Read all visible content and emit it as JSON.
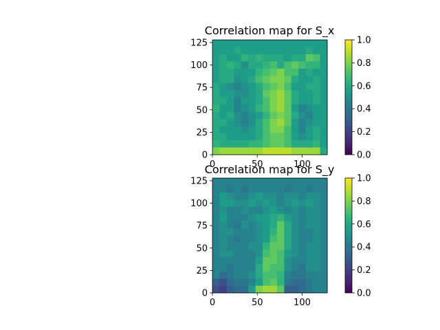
{
  "figure": {
    "background": "#ffffff"
  },
  "colormap": {
    "name": "viridis",
    "stops": [
      "#440154",
      "#482878",
      "#3e4989",
      "#31688e",
      "#26828e",
      "#1f9e89",
      "#35b779",
      "#6ece58",
      "#b5de2b",
      "#fde725"
    ]
  },
  "chart_data": [
    {
      "type": "heatmap",
      "title": "Correlation map for S_x",
      "xlabel": "",
      "ylabel": "",
      "xlim": [
        0,
        128
      ],
      "ylim": [
        0,
        128
      ],
      "xticks": [
        0,
        50,
        100
      ],
      "yticks": [
        0,
        25,
        50,
        75,
        100,
        125
      ],
      "grid": false,
      "colorbar": {
        "range": [
          0.0,
          1.0
        ],
        "ticks": [
          "0.0",
          "0.2",
          "0.4",
          "0.6",
          "0.8",
          "1.0"
        ]
      },
      "values": [
        [
          0.55,
          0.55,
          0.55,
          0.55,
          0.55,
          0.55,
          0.55,
          0.55,
          0.55,
          0.55,
          0.55,
          0.55,
          0.55,
          0.55,
          0.55,
          0.55
        ],
        [
          0.55,
          0.55,
          0.55,
          0.6,
          0.55,
          0.55,
          0.55,
          0.55,
          0.55,
          0.55,
          0.55,
          0.55,
          0.55,
          0.6,
          0.55,
          0.55
        ],
        [
          0.55,
          0.6,
          0.55,
          0.55,
          0.65,
          0.6,
          0.65,
          0.6,
          0.6,
          0.6,
          0.55,
          0.6,
          0.6,
          0.75,
          0.7,
          0.55
        ],
        [
          0.55,
          0.6,
          0.65,
          0.6,
          0.5,
          0.6,
          0.6,
          0.65,
          0.7,
          0.6,
          0.7,
          0.75,
          0.7,
          0.65,
          0.65,
          0.55
        ],
        [
          0.55,
          0.6,
          0.6,
          0.55,
          0.55,
          0.55,
          0.65,
          0.7,
          0.75,
          0.8,
          0.7,
          0.7,
          0.55,
          0.6,
          0.55,
          0.55
        ],
        [
          0.55,
          0.6,
          0.6,
          0.5,
          0.55,
          0.6,
          0.7,
          0.75,
          0.8,
          0.8,
          0.75,
          0.6,
          0.55,
          0.55,
          0.6,
          0.55
        ],
        [
          0.6,
          0.55,
          0.5,
          0.45,
          0.5,
          0.55,
          0.6,
          0.7,
          0.75,
          0.8,
          0.7,
          0.55,
          0.55,
          0.6,
          0.6,
          0.55
        ],
        [
          0.6,
          0.55,
          0.55,
          0.5,
          0.5,
          0.55,
          0.6,
          0.75,
          0.8,
          0.85,
          0.75,
          0.6,
          0.55,
          0.55,
          0.6,
          0.55
        ],
        [
          0.6,
          0.6,
          0.55,
          0.45,
          0.55,
          0.55,
          0.6,
          0.7,
          0.8,
          0.85,
          0.75,
          0.6,
          0.55,
          0.55,
          0.6,
          0.55
        ],
        [
          0.65,
          0.55,
          0.55,
          0.45,
          0.5,
          0.55,
          0.65,
          0.7,
          0.8,
          0.85,
          0.75,
          0.55,
          0.45,
          0.5,
          0.55,
          0.55
        ],
        [
          0.6,
          0.55,
          0.6,
          0.5,
          0.45,
          0.5,
          0.55,
          0.65,
          0.75,
          0.8,
          0.75,
          0.6,
          0.5,
          0.45,
          0.55,
          0.55
        ],
        [
          0.6,
          0.6,
          0.55,
          0.5,
          0.45,
          0.5,
          0.6,
          0.7,
          0.8,
          0.85,
          0.75,
          0.55,
          0.45,
          0.5,
          0.55,
          0.55
        ],
        [
          0.6,
          0.55,
          0.55,
          0.55,
          0.5,
          0.55,
          0.6,
          0.7,
          0.8,
          0.8,
          0.7,
          0.55,
          0.45,
          0.55,
          0.6,
          0.55
        ],
        [
          0.6,
          0.6,
          0.55,
          0.55,
          0.55,
          0.55,
          0.6,
          0.7,
          0.75,
          0.75,
          0.7,
          0.55,
          0.5,
          0.55,
          0.6,
          0.55
        ],
        [
          0.65,
          0.6,
          0.6,
          0.6,
          0.6,
          0.65,
          0.65,
          0.7,
          0.75,
          0.75,
          0.7,
          0.6,
          0.6,
          0.6,
          0.65,
          0.55
        ],
        [
          0.8,
          0.85,
          0.85,
          0.85,
          0.85,
          0.85,
          0.85,
          0.9,
          0.9,
          0.9,
          0.9,
          0.85,
          0.85,
          0.85,
          0.85,
          0.6
        ]
      ]
    },
    {
      "type": "heatmap",
      "title": "Correlation map for S_y",
      "xlabel": "",
      "ylabel": "",
      "xlim": [
        0,
        128
      ],
      "ylim": [
        0,
        128
      ],
      "xticks": [
        0,
        50,
        100
      ],
      "yticks": [
        0,
        25,
        50,
        75,
        100,
        125
      ],
      "grid": false,
      "colorbar": {
        "range": [
          0.0,
          1.0
        ],
        "ticks": [
          "0.0",
          "0.2",
          "0.4",
          "0.6",
          "0.8",
          "1.0"
        ]
      },
      "values": [
        [
          0.45,
          0.45,
          0.45,
          0.45,
          0.45,
          0.45,
          0.45,
          0.45,
          0.45,
          0.45,
          0.45,
          0.45,
          0.45,
          0.45,
          0.45,
          0.45
        ],
        [
          0.45,
          0.45,
          0.4,
          0.45,
          0.4,
          0.45,
          0.45,
          0.45,
          0.45,
          0.45,
          0.4,
          0.45,
          0.45,
          0.4,
          0.45,
          0.45
        ],
        [
          0.45,
          0.55,
          0.5,
          0.45,
          0.45,
          0.5,
          0.55,
          0.5,
          0.5,
          0.45,
          0.5,
          0.5,
          0.45,
          0.5,
          0.5,
          0.45
        ],
        [
          0.45,
          0.55,
          0.55,
          0.5,
          0.5,
          0.55,
          0.5,
          0.55,
          0.5,
          0.45,
          0.5,
          0.55,
          0.5,
          0.55,
          0.5,
          0.45
        ],
        [
          0.45,
          0.5,
          0.45,
          0.45,
          0.5,
          0.45,
          0.45,
          0.5,
          0.55,
          0.5,
          0.45,
          0.5,
          0.45,
          0.5,
          0.5,
          0.45
        ],
        [
          0.45,
          0.55,
          0.45,
          0.45,
          0.45,
          0.5,
          0.55,
          0.55,
          0.6,
          0.65,
          0.55,
          0.5,
          0.45,
          0.5,
          0.5,
          0.45
        ],
        [
          0.45,
          0.5,
          0.45,
          0.4,
          0.5,
          0.45,
          0.5,
          0.55,
          0.6,
          0.75,
          0.6,
          0.5,
          0.45,
          0.5,
          0.5,
          0.45
        ],
        [
          0.45,
          0.5,
          0.5,
          0.45,
          0.45,
          0.45,
          0.5,
          0.55,
          0.65,
          0.75,
          0.6,
          0.5,
          0.45,
          0.45,
          0.5,
          0.45
        ],
        [
          0.45,
          0.5,
          0.45,
          0.4,
          0.45,
          0.45,
          0.5,
          0.55,
          0.7,
          0.75,
          0.6,
          0.5,
          0.45,
          0.45,
          0.5,
          0.45
        ],
        [
          0.45,
          0.5,
          0.45,
          0.45,
          0.45,
          0.5,
          0.5,
          0.65,
          0.75,
          0.75,
          0.6,
          0.5,
          0.45,
          0.5,
          0.5,
          0.45
        ],
        [
          0.45,
          0.5,
          0.5,
          0.45,
          0.45,
          0.45,
          0.5,
          0.7,
          0.75,
          0.7,
          0.55,
          0.5,
          0.45,
          0.5,
          0.5,
          0.45
        ],
        [
          0.45,
          0.45,
          0.45,
          0.45,
          0.45,
          0.45,
          0.55,
          0.75,
          0.75,
          0.7,
          0.5,
          0.45,
          0.45,
          0.5,
          0.5,
          0.45
        ],
        [
          0.45,
          0.45,
          0.4,
          0.45,
          0.45,
          0.45,
          0.6,
          0.75,
          0.7,
          0.7,
          0.5,
          0.45,
          0.4,
          0.5,
          0.5,
          0.45
        ],
        [
          0.45,
          0.35,
          0.4,
          0.45,
          0.45,
          0.5,
          0.6,
          0.7,
          0.7,
          0.65,
          0.45,
          0.4,
          0.4,
          0.45,
          0.45,
          0.45
        ],
        [
          0.3,
          0.25,
          0.35,
          0.4,
          0.4,
          0.45,
          0.55,
          0.7,
          0.75,
          0.65,
          0.4,
          0.35,
          0.35,
          0.4,
          0.45,
          0.45
        ],
        [
          0.25,
          0.2,
          0.3,
          0.35,
          0.35,
          0.55,
          0.8,
          0.85,
          0.85,
          0.75,
          0.3,
          0.3,
          0.35,
          0.4,
          0.45,
          0.45
        ]
      ]
    }
  ]
}
